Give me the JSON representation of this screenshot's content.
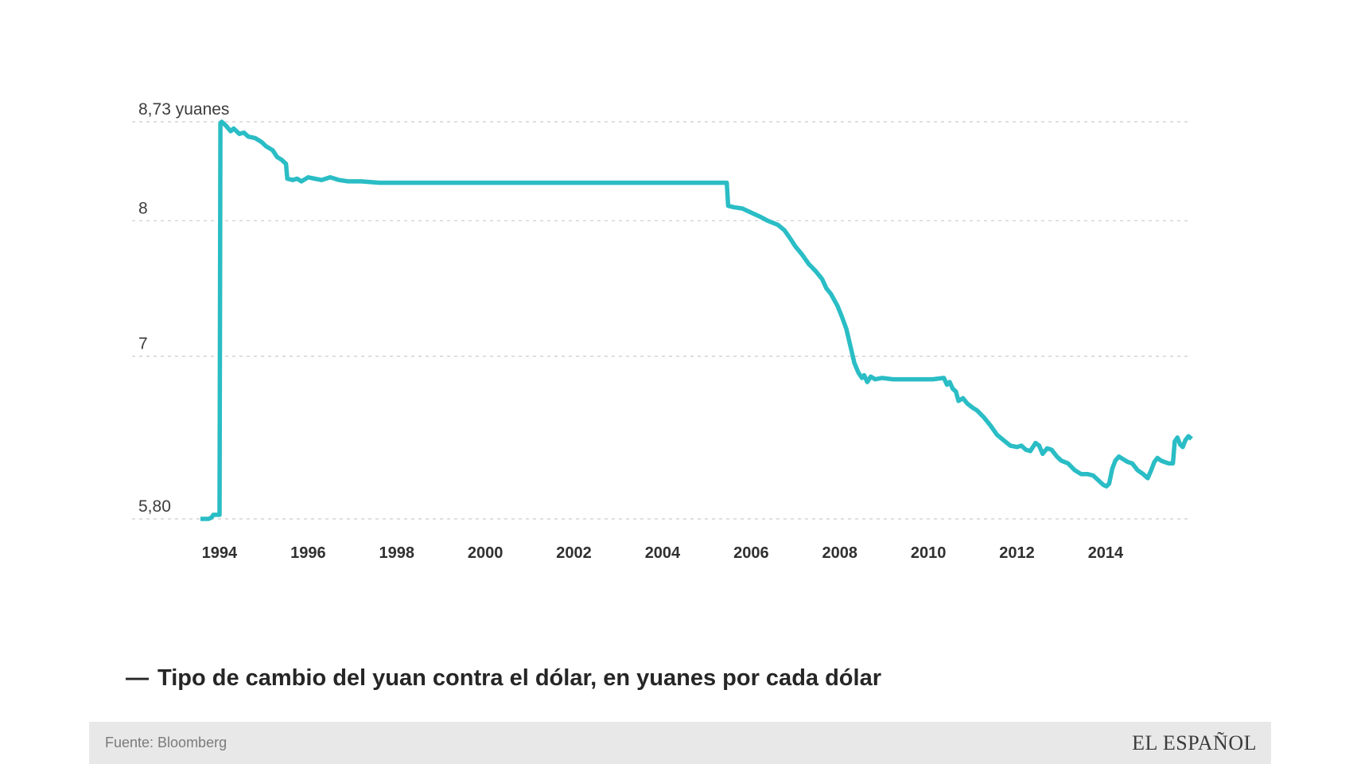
{
  "chart_data": {
    "type": "line",
    "title": "",
    "xlabel": "",
    "ylabel": "yuanes por dólar",
    "x_range": [
      1993.57,
      2015.94
    ],
    "y_range": [
      5.8,
      8.73
    ],
    "x_ticks": [
      1994,
      1996,
      1998,
      2000,
      2002,
      2004,
      2006,
      2008,
      2010,
      2012,
      2014
    ],
    "y_gridlines": [
      {
        "value": 8.73,
        "label": "8,73 yuanes"
      },
      {
        "value": 8.0,
        "label": "8"
      },
      {
        "value": 7.0,
        "label": "7"
      },
      {
        "value": 5.8,
        "label": "5,80"
      }
    ],
    "grid": "dashed-horizontal",
    "legend_position": "below",
    "line_color": "#2abdc5",
    "series": [
      {
        "name": "Tipo de cambio del yuan contra el dólar",
        "points": [
          [
            1993.57,
            5.8
          ],
          [
            1993.75,
            5.8
          ],
          [
            1993.82,
            5.81
          ],
          [
            1993.86,
            5.83
          ],
          [
            1994.0,
            5.83
          ],
          [
            1994.02,
            8.72
          ],
          [
            1994.05,
            8.73
          ],
          [
            1994.15,
            8.7
          ],
          [
            1994.25,
            8.66
          ],
          [
            1994.32,
            8.68
          ],
          [
            1994.45,
            8.64
          ],
          [
            1994.55,
            8.65
          ],
          [
            1994.65,
            8.62
          ],
          [
            1994.8,
            8.61
          ],
          [
            1994.95,
            8.58
          ],
          [
            1995.05,
            8.55
          ],
          [
            1995.2,
            8.52
          ],
          [
            1995.3,
            8.47
          ],
          [
            1995.4,
            8.45
          ],
          [
            1995.5,
            8.42
          ],
          [
            1995.53,
            8.31
          ],
          [
            1995.65,
            8.3
          ],
          [
            1995.75,
            8.31
          ],
          [
            1995.85,
            8.29
          ],
          [
            1996.0,
            8.32
          ],
          [
            1996.15,
            8.31
          ],
          [
            1996.3,
            8.3
          ],
          [
            1996.5,
            8.32
          ],
          [
            1996.7,
            8.3
          ],
          [
            1996.9,
            8.29
          ],
          [
            1997.2,
            8.29
          ],
          [
            1997.6,
            8.28
          ],
          [
            1998.0,
            8.28
          ],
          [
            1999.0,
            8.28
          ],
          [
            2000.0,
            8.28
          ],
          [
            2001.0,
            8.28
          ],
          [
            2002.0,
            8.28
          ],
          [
            2003.0,
            8.28
          ],
          [
            2004.0,
            8.28
          ],
          [
            2005.0,
            8.28
          ],
          [
            2005.45,
            8.28
          ],
          [
            2005.48,
            8.11
          ],
          [
            2005.6,
            8.1
          ],
          [
            2005.8,
            8.09
          ],
          [
            2006.0,
            8.06
          ],
          [
            2006.2,
            8.03
          ],
          [
            2006.37,
            8.0
          ],
          [
            2006.6,
            7.97
          ],
          [
            2006.75,
            7.93
          ],
          [
            2006.9,
            7.86
          ],
          [
            2007.0,
            7.81
          ],
          [
            2007.15,
            7.75
          ],
          [
            2007.3,
            7.68
          ],
          [
            2007.45,
            7.63
          ],
          [
            2007.6,
            7.57
          ],
          [
            2007.7,
            7.5
          ],
          [
            2007.8,
            7.46
          ],
          [
            2007.95,
            7.37
          ],
          [
            2008.05,
            7.29
          ],
          [
            2008.15,
            7.2
          ],
          [
            2008.25,
            7.06
          ],
          [
            2008.33,
            6.95
          ],
          [
            2008.42,
            6.88
          ],
          [
            2008.5,
            6.84
          ],
          [
            2008.55,
            6.86
          ],
          [
            2008.62,
            6.81
          ],
          [
            2008.7,
            6.85
          ],
          [
            2008.8,
            6.83
          ],
          [
            2008.95,
            6.84
          ],
          [
            2009.2,
            6.83
          ],
          [
            2009.5,
            6.83
          ],
          [
            2009.8,
            6.83
          ],
          [
            2010.1,
            6.83
          ],
          [
            2010.35,
            6.84
          ],
          [
            2010.42,
            6.79
          ],
          [
            2010.48,
            6.81
          ],
          [
            2010.55,
            6.76
          ],
          [
            2010.62,
            6.74
          ],
          [
            2010.68,
            6.67
          ],
          [
            2010.78,
            6.69
          ],
          [
            2010.88,
            6.65
          ],
          [
            2011.0,
            6.62
          ],
          [
            2011.1,
            6.6
          ],
          [
            2011.25,
            6.55
          ],
          [
            2011.4,
            6.49
          ],
          [
            2011.55,
            6.42
          ],
          [
            2011.7,
            6.38
          ],
          [
            2011.85,
            6.34
          ],
          [
            2012.0,
            6.33
          ],
          [
            2012.1,
            6.34
          ],
          [
            2012.2,
            6.31
          ],
          [
            2012.3,
            6.3
          ],
          [
            2012.42,
            6.36
          ],
          [
            2012.5,
            6.34
          ],
          [
            2012.58,
            6.28
          ],
          [
            2012.68,
            6.32
          ],
          [
            2012.78,
            6.31
          ],
          [
            2012.9,
            6.26
          ],
          [
            2013.0,
            6.23
          ],
          [
            2013.15,
            6.21
          ],
          [
            2013.3,
            6.16
          ],
          [
            2013.45,
            6.13
          ],
          [
            2013.6,
            6.13
          ],
          [
            2013.72,
            6.12
          ],
          [
            2013.85,
            6.08
          ],
          [
            2013.95,
            6.05
          ],
          [
            2014.02,
            6.04
          ],
          [
            2014.08,
            6.06
          ],
          [
            2014.15,
            6.17
          ],
          [
            2014.22,
            6.23
          ],
          [
            2014.3,
            6.26
          ],
          [
            2014.4,
            6.24
          ],
          [
            2014.5,
            6.22
          ],
          [
            2014.6,
            6.21
          ],
          [
            2014.72,
            6.16
          ],
          [
            2014.85,
            6.13
          ],
          [
            2014.95,
            6.1
          ],
          [
            2015.03,
            6.16
          ],
          [
            2015.1,
            6.22
          ],
          [
            2015.17,
            6.25
          ],
          [
            2015.25,
            6.23
          ],
          [
            2015.33,
            6.22
          ],
          [
            2015.42,
            6.21
          ],
          [
            2015.52,
            6.21
          ],
          [
            2015.56,
            6.37
          ],
          [
            2015.62,
            6.4
          ],
          [
            2015.68,
            6.35
          ],
          [
            2015.74,
            6.33
          ],
          [
            2015.8,
            6.38
          ],
          [
            2015.87,
            6.41
          ],
          [
            2015.94,
            6.39
          ]
        ]
      }
    ]
  },
  "legend": {
    "marker": "—",
    "label": "Tipo de cambio del yuan contra el dólar, en yuanes por cada dólar"
  },
  "footer": {
    "source": "Fuente: Bloomberg",
    "brand": "EL ESPAÑOL"
  }
}
